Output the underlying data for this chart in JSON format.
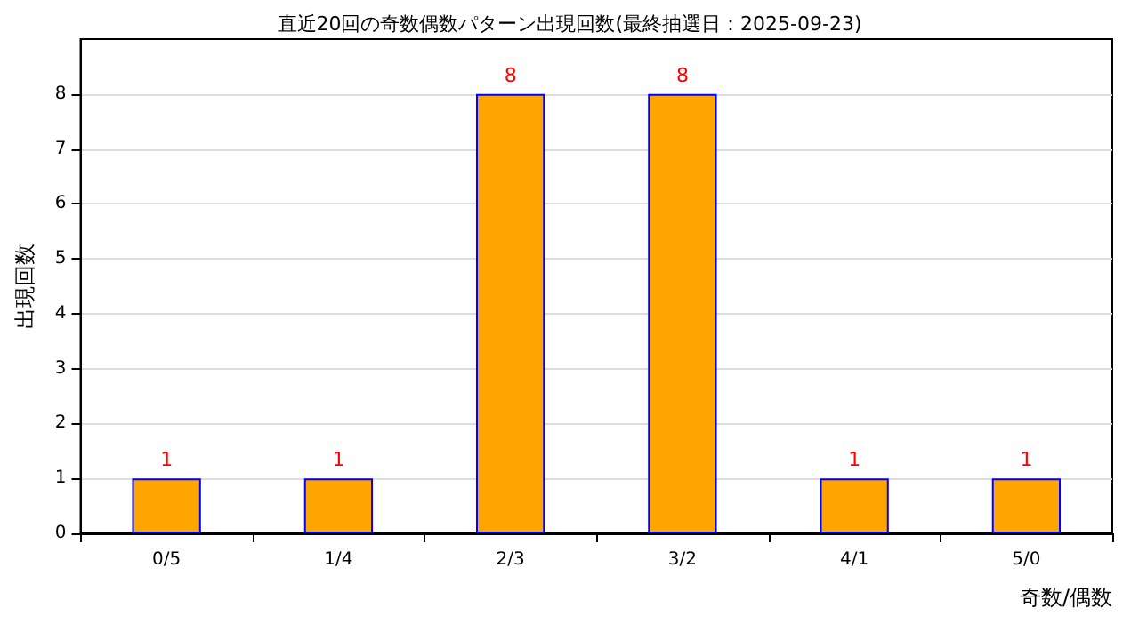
{
  "chart_data": {
    "type": "bar",
    "title": "直近20回の奇数偶数パターン出現回数(最終抽選日：2025-09-23)",
    "xlabel": "奇数/偶数",
    "ylabel": "出現回数",
    "categories": [
      "0/5",
      "1/4",
      "2/3",
      "3/2",
      "4/1",
      "5/0"
    ],
    "series": [
      {
        "color": "#ffa500",
        "values": [
          1,
          1,
          8,
          8,
          1,
          1
        ]
      }
    ],
    "ylim": [
      0,
      9
    ],
    "yticks": [
      0,
      1,
      2,
      3,
      4,
      5,
      6,
      7,
      8
    ],
    "grid": "y",
    "data_labels": true
  }
}
